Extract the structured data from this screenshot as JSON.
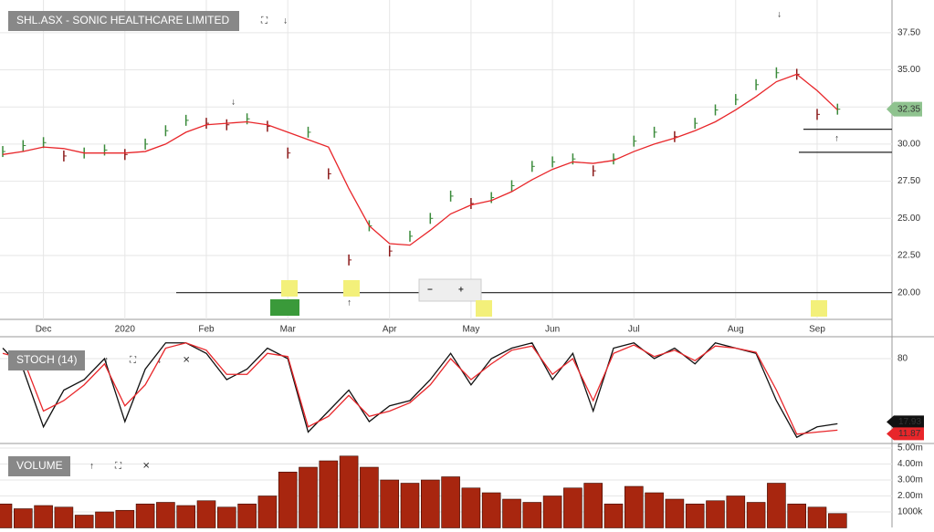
{
  "chart_data": [
    {
      "type": "price",
      "title": "SHL.ASX - SONIC HEALTHCARE LIMITED",
      "categories": [
        null,
        null,
        "Dec",
        null,
        null,
        null,
        "2020",
        null,
        null,
        null,
        "Feb",
        null,
        null,
        null,
        "Mar",
        null,
        null,
        null,
        null,
        "Apr",
        null,
        null,
        null,
        "May",
        null,
        null,
        null,
        "Jun",
        null,
        null,
        null,
        "Jul",
        null,
        null,
        null,
        null,
        "Aug",
        null,
        null,
        null,
        "Sep",
        null
      ],
      "series": [
        {
          "color": "#3a8a3a",
          "values": [
            29.5,
            29.9,
            30.1,
            29.2,
            29.4,
            29.6,
            29.3,
            30.0,
            30.9,
            31.6,
            31.4,
            31.3,
            31.7,
            31.2,
            29.4,
            30.8,
            28.0,
            22.2,
            24.5,
            22.8,
            23.8,
            25.0,
            26.5,
            26.0,
            26.4,
            27.2,
            28.5,
            28.8,
            29.0,
            28.2,
            29.0,
            30.2,
            30.8,
            30.5,
            31.4,
            32.3,
            33.0,
            34.0,
            34.8,
            34.7,
            32.0,
            32.35
          ]
        },
        {
          "color": "#e8262a",
          "values": [
            29.3,
            29.5,
            29.8,
            29.7,
            29.4,
            29.4,
            29.4,
            29.5,
            30.0,
            30.8,
            31.3,
            31.4,
            31.5,
            31.3,
            30.8,
            30.3,
            29.8,
            27.0,
            24.5,
            23.3,
            23.2,
            24.2,
            25.3,
            25.9,
            26.2,
            26.8,
            27.6,
            28.3,
            28.8,
            28.7,
            28.9,
            29.5,
            30.0,
            30.4,
            30.9,
            31.5,
            32.3,
            33.2,
            34.2,
            34.7,
            33.6,
            32.3
          ]
        }
      ],
      "levels": [
        20.0,
        31.0,
        29.45
      ],
      "ylim": [
        18.2,
        39.7
      ],
      "yticks": [
        {
          "value": 20,
          "label": "20.00"
        },
        {
          "value": 22.5,
          "label": "22.50"
        },
        {
          "value": 25,
          "label": "25.00"
        },
        {
          "value": 27.5,
          "label": "27.50"
        },
        {
          "value": 30,
          "label": "30.00"
        },
        {
          "value": 32.5,
          "label": "32.50"
        },
        {
          "value": 35,
          "label": "35.00"
        },
        {
          "value": 37.5,
          "label": "37.50"
        }
      ],
      "grid": true
    },
    {
      "type": "line",
      "title": "STOCH (14)",
      "series": [
        {
          "color": "#111111",
          "values": [
            90,
            70,
            15,
            50,
            60,
            80,
            20,
            70,
            95,
            95,
            85,
            60,
            70,
            90,
            80,
            10,
            30,
            50,
            20,
            35,
            40,
            60,
            85,
            55,
            80,
            90,
            95,
            60,
            85,
            30,
            90,
            95,
            80,
            90,
            75,
            95,
            90,
            85,
            40,
            5,
            15,
            17.93
          ]
        },
        {
          "color": "#e8262a",
          "values": [
            85,
            80,
            30,
            40,
            55,
            75,
            35,
            55,
            90,
            95,
            88,
            65,
            65,
            85,
            82,
            15,
            25,
            45,
            25,
            30,
            38,
            55,
            80,
            60,
            75,
            88,
            92,
            65,
            80,
            40,
            85,
            93,
            82,
            88,
            78,
            92,
            90,
            86,
            50,
            8,
            10,
            11.87
          ]
        }
      ],
      "ylim": [
        0,
        100
      ],
      "yticks": [
        80
      ],
      "grid": true
    },
    {
      "type": "bar",
      "title": "VOLUME",
      "color": "#a8260f",
      "values": [
        1.5,
        1.2,
        1.4,
        1.3,
        0.8,
        1.0,
        1.1,
        1.5,
        1.6,
        1.4,
        1.7,
        1.3,
        1.5,
        2.0,
        3.5,
        3.8,
        4.2,
        4.5,
        3.8,
        3.0,
        2.8,
        3.0,
        3.2,
        2.5,
        2.2,
        1.8,
        1.6,
        2.0,
        2.5,
        2.8,
        1.5,
        2.6,
        2.2,
        1.8,
        1.5,
        1.7,
        2.0,
        1.6,
        2.8,
        1.5,
        1.3,
        0.9
      ],
      "ylim": [
        0,
        5.23
      ],
      "yticks": [
        {
          "value": 1,
          "label": "1000k"
        },
        {
          "value": 2,
          "label": "2.00m"
        },
        {
          "value": 3,
          "label": "3.00m"
        },
        {
          "value": 4,
          "label": "4.00m"
        },
        {
          "value": 5,
          "label": "5.00m"
        }
      ],
      "grid": true
    }
  ]
}
